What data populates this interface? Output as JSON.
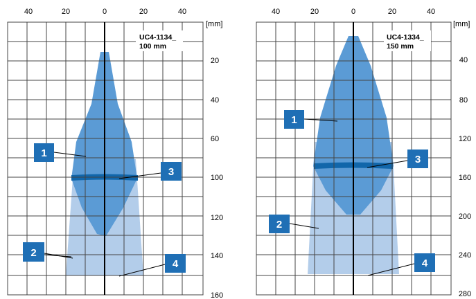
{
  "panels": [
    {
      "id": "left",
      "model_line1": "UC4-1134_",
      "model_line2": "100 mm",
      "unit_label": "[mm]",
      "x_ticks": [
        "40",
        "20",
        "0",
        "20",
        "40"
      ],
      "y_ticks": [
        "20",
        "40",
        "60",
        "80",
        "100",
        "120",
        "140",
        "160"
      ],
      "callouts": [
        "1",
        "2",
        "3",
        "4"
      ]
    },
    {
      "id": "right",
      "model_line1": "UC4-1334_",
      "model_line2": "150 mm",
      "unit_label": "[mm]",
      "x_ticks": [
        "40",
        "20",
        "0",
        "20",
        "40"
      ],
      "y_ticks": [
        "40",
        "80",
        "120",
        "160",
        "200",
        "240",
        "280"
      ],
      "callouts": [
        "1",
        "2",
        "3",
        "4"
      ]
    }
  ],
  "colors": {
    "detection_zone_dark": "#5b9bd5",
    "detection_zone_light": "#b3cdea",
    "limit_band": "#1166aa",
    "callout_box": "#1f6fb5",
    "grid": "#444444"
  }
}
